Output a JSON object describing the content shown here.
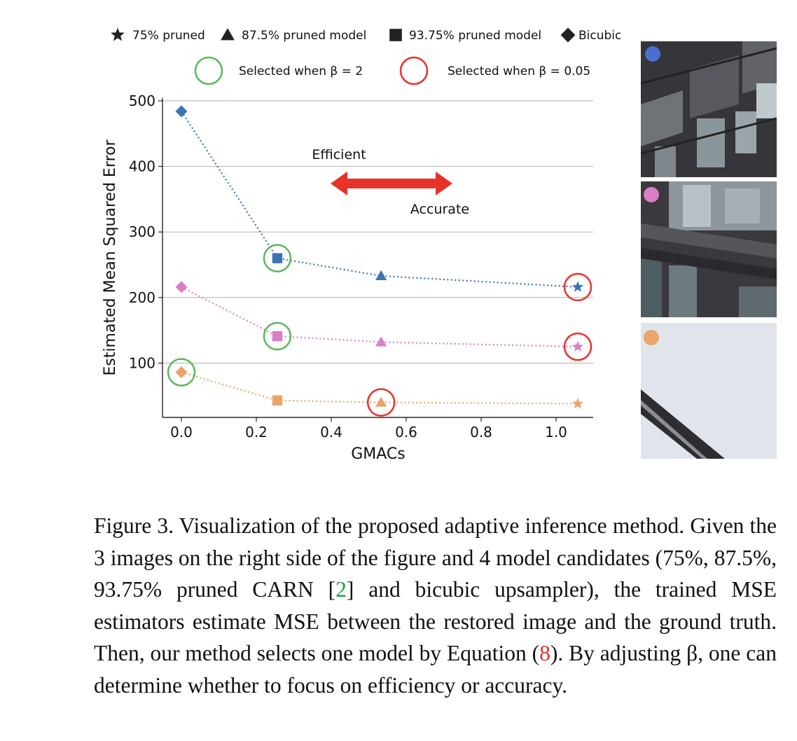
{
  "chart_data": {
    "type": "scatter",
    "xlabel": "GMACs",
    "ylabel": "Estimated Mean Squared Error",
    "xlim": [
      -0.05,
      1.1
    ],
    "ylim": [
      20,
      505
    ],
    "xticks": [
      "0.0",
      "0.2",
      "0.4",
      "0.6",
      "0.8",
      "1.0"
    ],
    "yticks": [
      "100",
      "200",
      "300",
      "400",
      "500"
    ],
    "grid": "horizontal",
    "legend": {
      "markers": [
        {
          "label": "75% pruned",
          "marker": "star"
        },
        {
          "label": "87.5% pruned model",
          "marker": "triangle"
        },
        {
          "label": "93.75% pruned model",
          "marker": "square"
        },
        {
          "label": "Bicubic",
          "marker": "diamond"
        }
      ],
      "circles": [
        {
          "label": "Selected when β = 2",
          "color": "#5cb85c"
        },
        {
          "label": "Selected when β = 0.05",
          "color": "#e8322a"
        }
      ]
    },
    "series": [
      {
        "color": "#3b74b5",
        "x": [
          0.0,
          0.256,
          0.533,
          1.058
        ],
        "y": [
          484,
          260,
          233,
          216
        ],
        "markers": [
          "diamond",
          "square",
          "triangle",
          "star"
        ],
        "selected_beta_2": 1,
        "selected_beta_005": 3
      },
      {
        "color": "#d97fc6",
        "x": [
          0.0,
          0.256,
          0.533,
          1.058
        ],
        "y": [
          216,
          141,
          132,
          125
        ],
        "markers": [
          "diamond",
          "square",
          "triangle",
          "star"
        ],
        "selected_beta_2": 1,
        "selected_beta_005": 3
      },
      {
        "color": "#eba46a",
        "x": [
          0.0,
          0.256,
          0.533,
          1.058
        ],
        "y": [
          86,
          43,
          40,
          38
        ],
        "markers": [
          "diamond",
          "square",
          "triangle",
          "star"
        ],
        "selected_beta_2": 0,
        "selected_beta_005": 2
      }
    ],
    "annotations": {
      "left": "Efficient",
      "right": "Accurate",
      "arrow_color": "#e8322a"
    }
  },
  "caption": {
    "text_a": "Figure 3. Visualization of the proposed adaptive inference method. Given the 3 images on the right side of the figure and 4 model candidates (75%, 87.5%, 93.75% pruned CARN [",
    "ref_2": "2",
    "text_b": "] and bicubic upsampler), the trained MSE estimators estimate MSE between the restored image and the ground truth. Then, our method selects one model by Equation (",
    "ref_8": "8",
    "text_c": "). By adjusting β, one can determine whether to focus on efficiency or accuracy."
  },
  "images": {
    "dot_colors": [
      "#4a6fcf",
      "#d97fc6",
      "#eba46a"
    ]
  }
}
